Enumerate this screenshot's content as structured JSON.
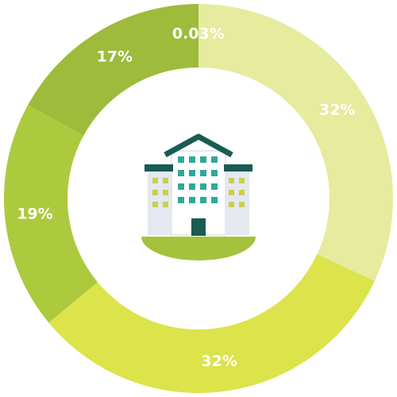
{
  "chart_data": {
    "type": "donut",
    "values": [
      32,
      32,
      19,
      17,
      0.03
    ],
    "value_labels": [
      "32%",
      "32%",
      "19%",
      "17%",
      "0.03%"
    ],
    "colors": [
      "#e6eb9e",
      "#dce34b",
      "#adc93e",
      "#9ebb3b",
      "#8e9e3a"
    ]
  }
}
